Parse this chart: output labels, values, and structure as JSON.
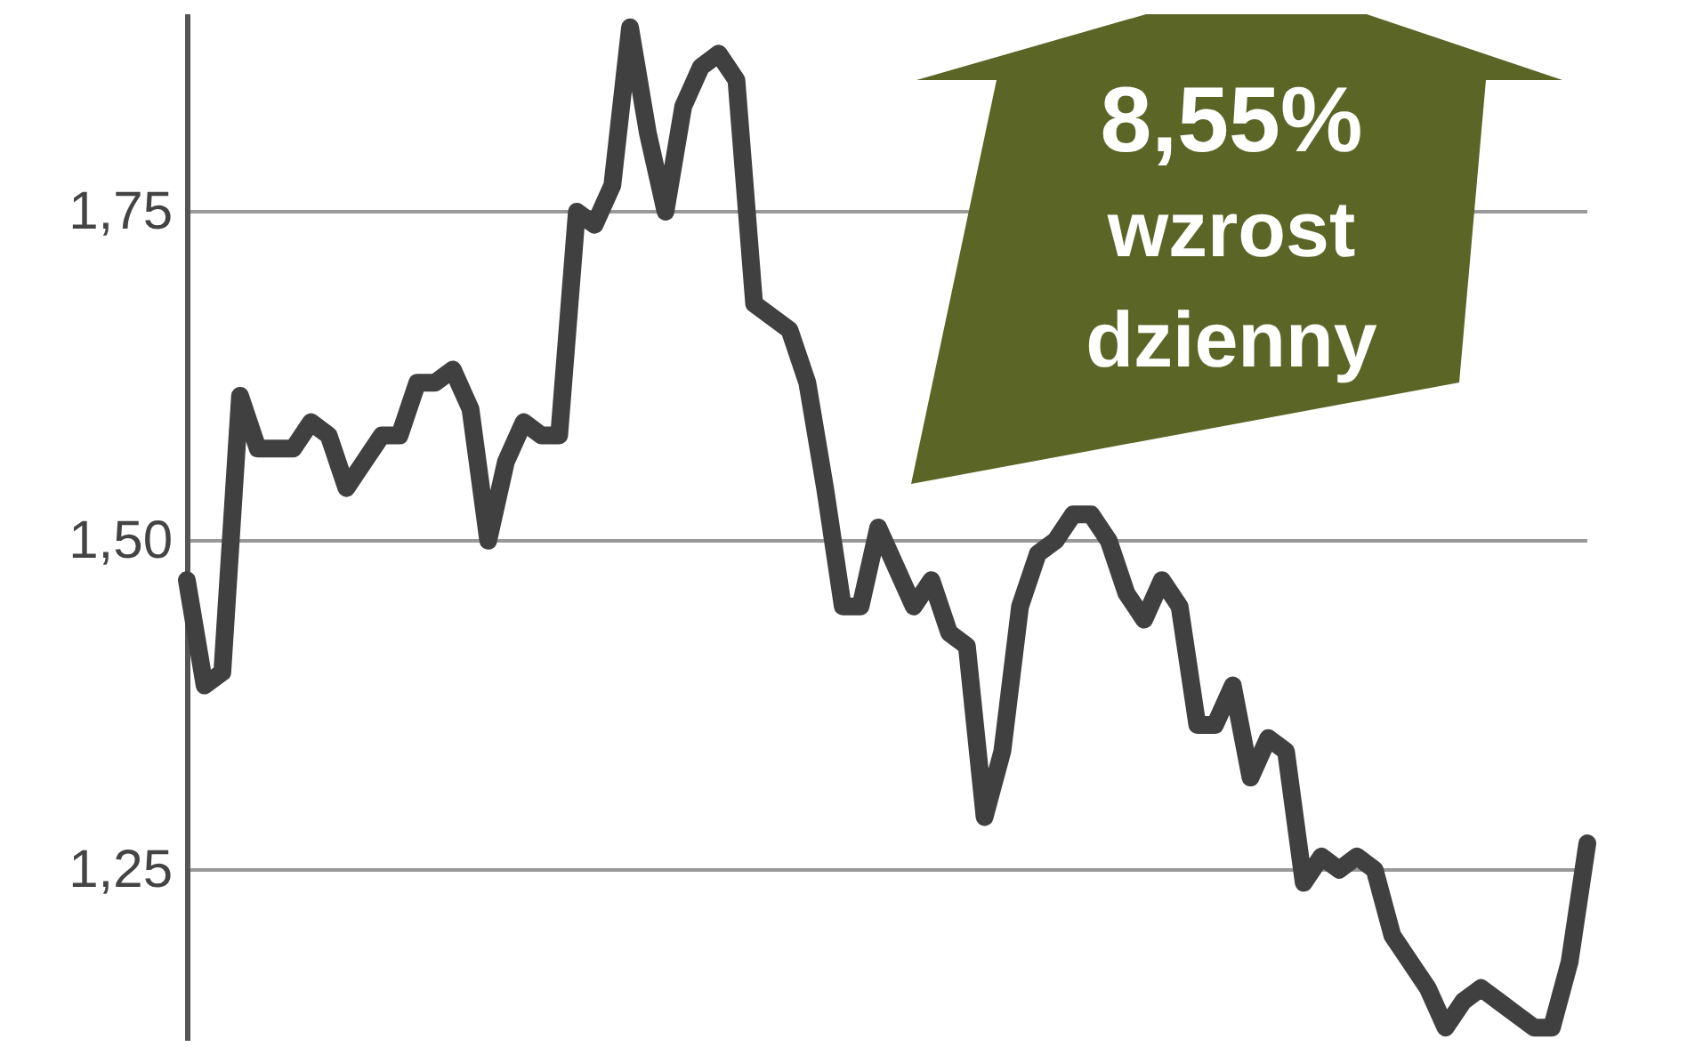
{
  "chart_data": {
    "type": "line",
    "categories": [
      null,
      null,
      null,
      null,
      null,
      null,
      null,
      null,
      null,
      null,
      null,
      null,
      null,
      null,
      null,
      null,
      null,
      null,
      null,
      null,
      null,
      null,
      null,
      null,
      null,
      null,
      null,
      null,
      null,
      null,
      null,
      null,
      null,
      null,
      null,
      null,
      null,
      null,
      null,
      null,
      null,
      null,
      null,
      null,
      null,
      null,
      null,
      null,
      null,
      null,
      null,
      null,
      null,
      null,
      null,
      null,
      null,
      null,
      null,
      null,
      null,
      null,
      null,
      null,
      null,
      null,
      null,
      null,
      null,
      null,
      null,
      null,
      null,
      null,
      null,
      null,
      null,
      null,
      null,
      null
    ],
    "series": [
      {
        "color": "#404040",
        "values": [
          1.47,
          1.39,
          1.4,
          1.61,
          1.57,
          1.57,
          1.57,
          1.59,
          1.58,
          1.54,
          1.56,
          1.58,
          1.58,
          1.62,
          1.62,
          1.63,
          1.6,
          1.5,
          1.56,
          1.59,
          1.58,
          1.58,
          1.75,
          1.74,
          1.77,
          1.89,
          1.81,
          1.75,
          1.83,
          1.86,
          1.87,
          1.85,
          1.68,
          1.67,
          1.66,
          1.62,
          1.54,
          1.45,
          1.45,
          1.51,
          1.48,
          1.45,
          1.47,
          1.43,
          1.42,
          1.29,
          1.34,
          1.45,
          1.49,
          1.5,
          1.52,
          1.52,
          1.5,
          1.46,
          1.44,
          1.47,
          1.45,
          1.36,
          1.36,
          1.39,
          1.32,
          1.35,
          1.34,
          1.24,
          1.26,
          1.25,
          1.26,
          1.25,
          1.2,
          1.18,
          1.16,
          1.13,
          1.15,
          1.16,
          1.15,
          1.14,
          1.13,
          1.13,
          1.18,
          1.27
        ]
      }
    ],
    "ylim": [
      1.12,
      1.9
    ],
    "yticks": [
      {
        "value": 1.25,
        "label": "1,25"
      },
      {
        "value": 1.5,
        "label": "1,50"
      },
      {
        "value": 1.75,
        "label": "1,75"
      }
    ],
    "grid": "y",
    "line_style": "solid",
    "tick_labels": "y",
    "annotations": [
      "8,55%",
      "wzrost",
      "dzienny"
    ]
  }
}
